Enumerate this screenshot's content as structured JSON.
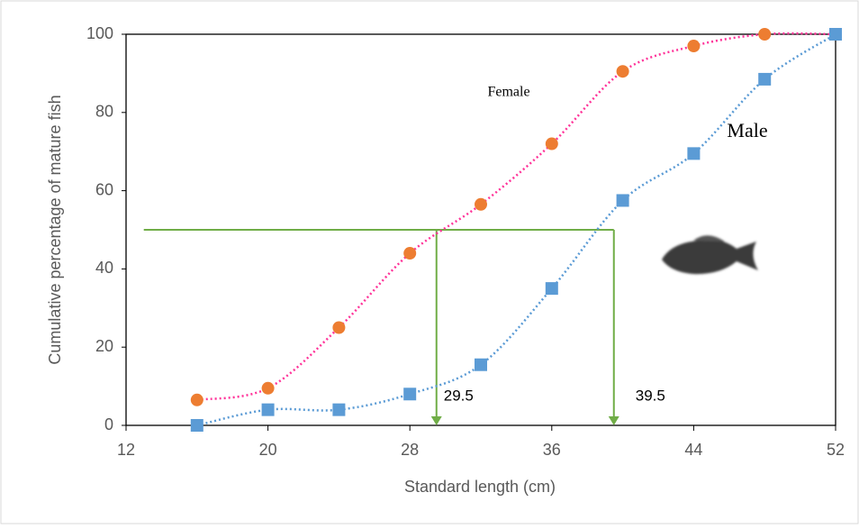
{
  "chart_data": {
    "type": "scatter",
    "x_label": "Standard length (cm)",
    "y_label": "Cumulative percentage of mature fish",
    "xlim": [
      12,
      52
    ],
    "xticks": [
      12,
      20,
      28,
      36,
      44,
      52
    ],
    "ylim": [
      0,
      100
    ],
    "yticks": [
      0,
      20,
      40,
      60,
      80,
      100
    ],
    "x": [
      16,
      20,
      24,
      28,
      32,
      36,
      40,
      44,
      48,
      52
    ],
    "series": [
      {
        "name": "Female",
        "color": "#ED7D31",
        "trend_color": "#FF3399",
        "marker": "circle",
        "values": [
          6.5,
          9.5,
          25,
          44,
          56.5,
          72,
          90.5,
          97,
          100,
          100
        ]
      },
      {
        "name": "Male",
        "color": "#5B9BD5",
        "trend_color": "#5B9BD5",
        "marker": "square",
        "values": [
          0,
          4,
          4,
          8,
          15.5,
          35,
          57.5,
          69.5,
          88.5,
          100
        ]
      }
    ],
    "threshold": {
      "y": 50,
      "x_start": 13,
      "color": "#70AD47",
      "x": [
        29.5,
        39.5
      ]
    }
  }
}
